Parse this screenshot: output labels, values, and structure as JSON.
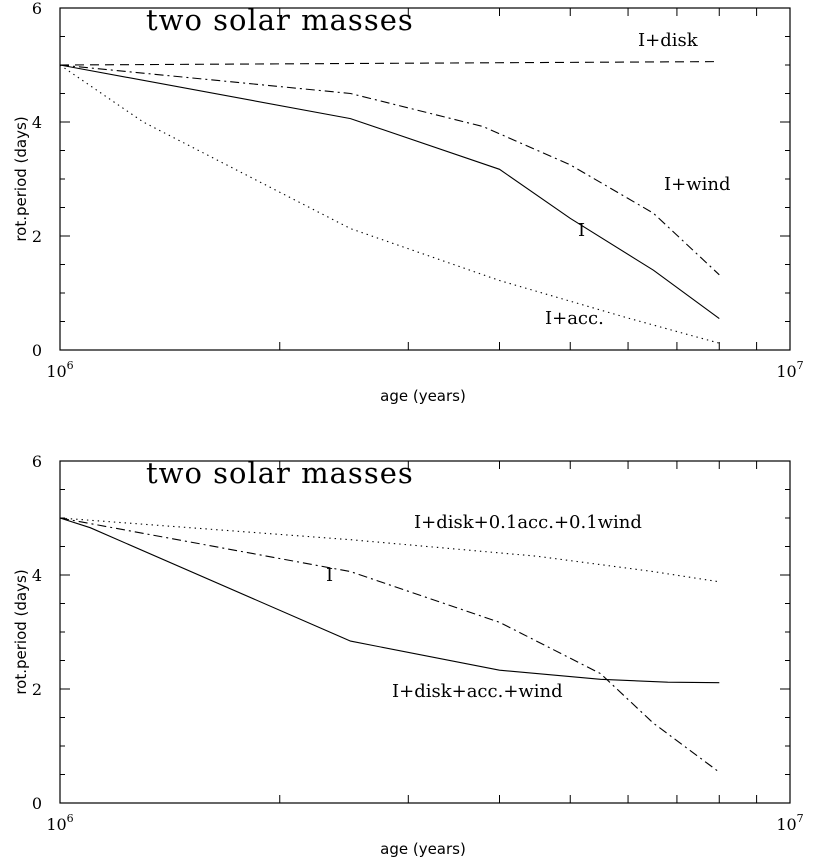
{
  "chart_data": [
    {
      "type": "line",
      "title": "two solar masses",
      "xlabel": "age (years)",
      "ylabel": "rot.period (days)",
      "xscale": "log",
      "xlim": [
        1000000,
        10000000
      ],
      "ylim": [
        0,
        6
      ],
      "yticks": [
        "0",
        "2",
        "4",
        "6"
      ],
      "xticks": [
        {
          "base": "10",
          "exp": "6"
        },
        {
          "base": "10",
          "exp": "7"
        }
      ],
      "series": [
        {
          "name": "I",
          "style": "solid",
          "x": [
            1000000,
            2500000,
            4000000,
            5000000,
            6500000,
            8000000
          ],
          "y": [
            5.0,
            4.06,
            3.17,
            2.31,
            1.4,
            0.55
          ]
        },
        {
          "name": "I+disk",
          "style": "dashed",
          "x": [
            1000000,
            8000000
          ],
          "y": [
            5.0,
            5.06
          ]
        },
        {
          "name": "I+wind",
          "style": "dashdot",
          "x": [
            1000000,
            2500000,
            3800000,
            5000000,
            6500000,
            8000000
          ],
          "y": [
            5.0,
            4.5,
            3.92,
            3.25,
            2.4,
            1.32
          ]
        },
        {
          "name": "I+acc.",
          "style": "dotted",
          "x": [
            1000000,
            1300000,
            2500000,
            4000000,
            6000000,
            8000000
          ],
          "y": [
            5.0,
            4.0,
            2.13,
            1.22,
            0.56,
            0.12
          ]
        }
      ],
      "annotations": [
        {
          "text": "I+disk",
          "series": "I+disk"
        },
        {
          "text": "I+wind",
          "series": "I+wind"
        },
        {
          "text": "I",
          "series": "I"
        },
        {
          "text": "I+acc.",
          "series": "I+acc."
        }
      ]
    },
    {
      "type": "line",
      "title": "two solar masses",
      "xlabel": "age (years)",
      "ylabel": "rot.period (days)",
      "xscale": "log",
      "xlim": [
        1000000,
        10000000
      ],
      "ylim": [
        0,
        6
      ],
      "yticks": [
        "0",
        "2",
        "4",
        "6"
      ],
      "xticks": [
        {
          "base": "10",
          "exp": "6"
        },
        {
          "base": "10",
          "exp": "7"
        }
      ],
      "series": [
        {
          "name": "I+disk+acc.+wind",
          "style": "solid",
          "x": [
            1000000,
            1100000,
            2500000,
            4000000,
            5500000,
            6800000,
            8000000
          ],
          "y": [
            5.0,
            4.83,
            2.84,
            2.33,
            2.17,
            2.12,
            2.11
          ]
        },
        {
          "name": "I",
          "style": "dashdot",
          "x": [
            1000000,
            2500000,
            4000000,
            5500000,
            6500000,
            8000000
          ],
          "y": [
            5.0,
            4.06,
            3.17,
            2.27,
            1.4,
            0.54
          ]
        },
        {
          "name": "I+disk+0.1acc.+0.1wind",
          "style": "dotted",
          "x": [
            1000000,
            2500000,
            4500000,
            6500000,
            8000000
          ],
          "y": [
            5.0,
            4.62,
            4.33,
            4.06,
            3.88
          ]
        }
      ],
      "annotations": [
        {
          "text": "I+disk+0.1acc.+0.1wind",
          "series": "I+disk+0.1acc.+0.1wind"
        },
        {
          "text": "I",
          "series": "I"
        },
        {
          "text": "I+disk+acc.+wind",
          "series": "I+disk+acc.+wind"
        }
      ]
    }
  ]
}
